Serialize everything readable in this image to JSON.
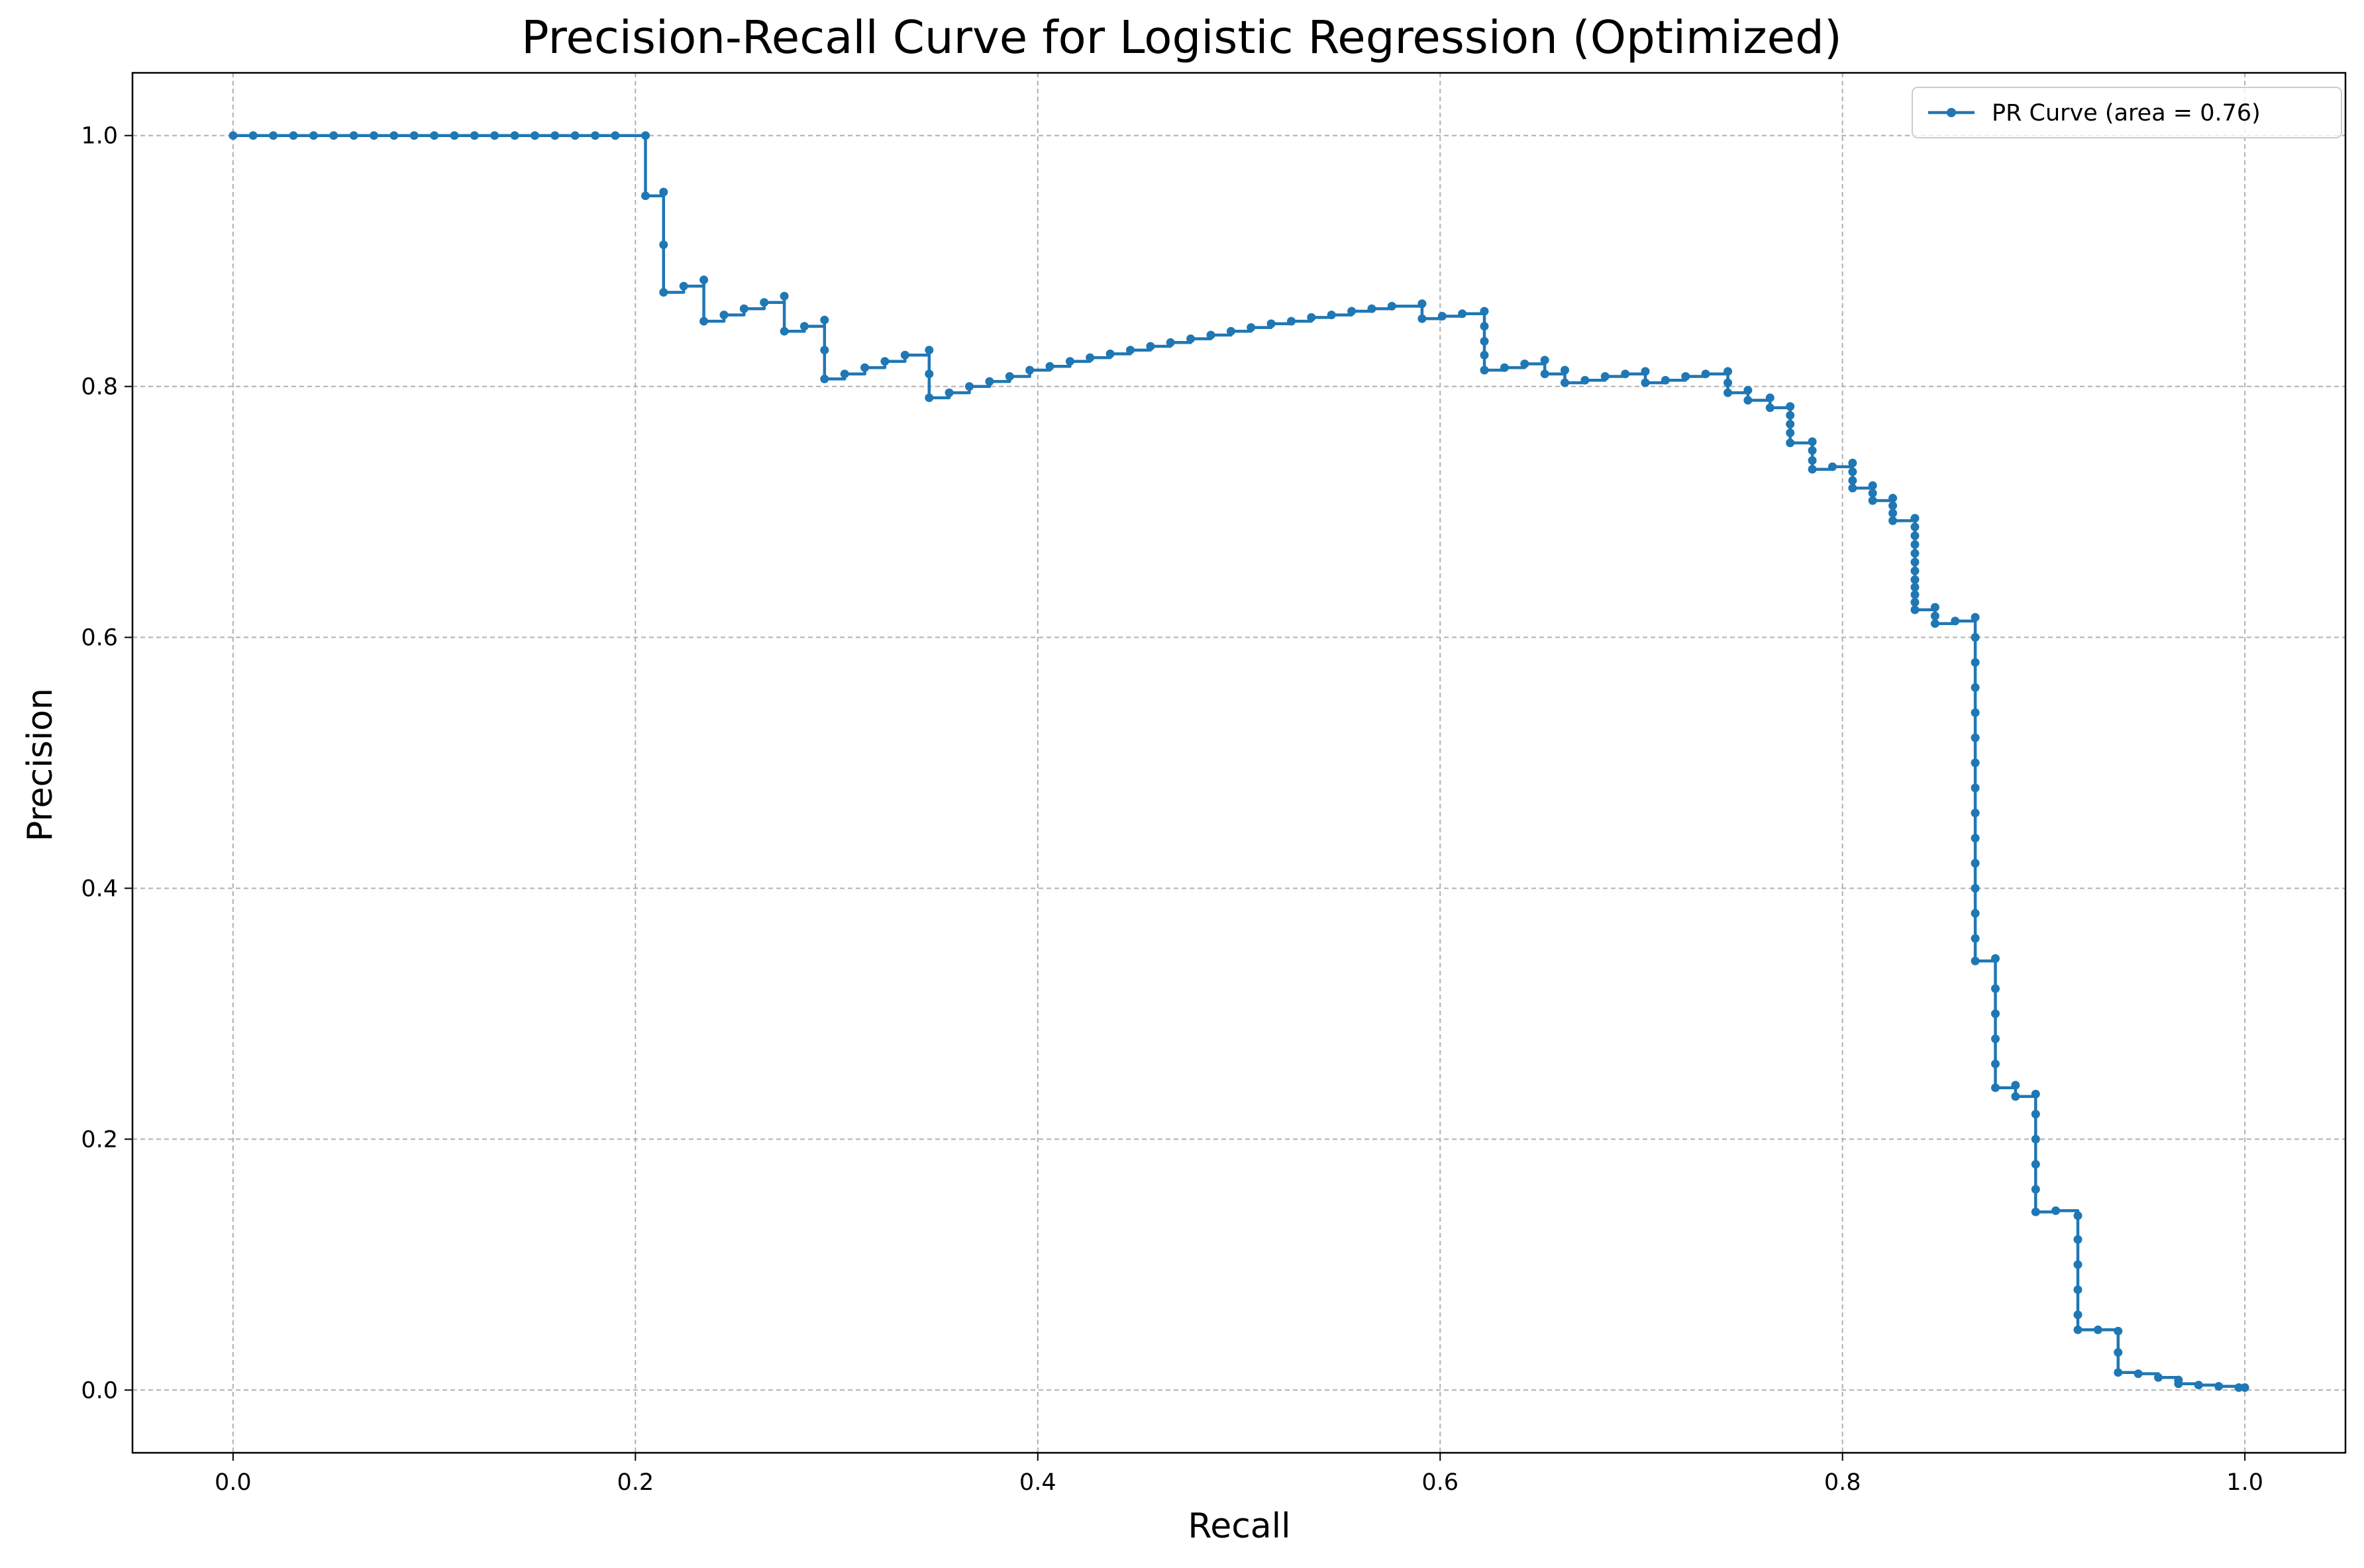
{
  "chart_data": {
    "type": "line",
    "title": "Precision-Recall Curve for Logistic Regression (Optimized)",
    "xlabel": "Recall",
    "ylabel": "Precision",
    "xlim": [
      -0.05,
      1.05
    ],
    "ylim": [
      -0.05,
      1.05
    ],
    "x_ticks": [
      0.0,
      0.2,
      0.4,
      0.6,
      0.8,
      1.0
    ],
    "y_ticks": [
      0.0,
      0.2,
      0.4,
      0.6,
      0.8,
      1.0
    ],
    "x_tick_labels": [
      "0.0",
      "0.2",
      "0.4",
      "0.6",
      "0.8",
      "1.0"
    ],
    "y_tick_labels": [
      "0.0",
      "0.2",
      "0.4",
      "0.6",
      "0.8",
      "1.0"
    ],
    "grid": true,
    "legend_position": "top-right",
    "color": "#1f77b4",
    "series": [
      {
        "name": "PR Curve (area = 0.76)",
        "drawstyle": "steps-post",
        "marker": "dot",
        "points": [
          [
            0.0,
            1.0
          ],
          [
            0.01,
            1.0
          ],
          [
            0.02,
            1.0
          ],
          [
            0.03,
            1.0
          ],
          [
            0.04,
            1.0
          ],
          [
            0.05,
            1.0
          ],
          [
            0.06,
            1.0
          ],
          [
            0.07,
            1.0
          ],
          [
            0.08,
            1.0
          ],
          [
            0.09,
            1.0
          ],
          [
            0.1,
            1.0
          ],
          [
            0.11,
            1.0
          ],
          [
            0.12,
            1.0
          ],
          [
            0.13,
            1.0
          ],
          [
            0.14,
            1.0
          ],
          [
            0.15,
            1.0
          ],
          [
            0.16,
            1.0
          ],
          [
            0.17,
            1.0
          ],
          [
            0.18,
            1.0
          ],
          [
            0.19,
            1.0
          ],
          [
            0.205,
            1.0
          ],
          [
            0.205,
            0.952
          ],
          [
            0.214,
            0.955
          ],
          [
            0.214,
            0.913
          ],
          [
            0.214,
            0.875
          ],
          [
            0.224,
            0.88
          ],
          [
            0.234,
            0.885
          ],
          [
            0.234,
            0.852
          ],
          [
            0.244,
            0.857
          ],
          [
            0.254,
            0.862
          ],
          [
            0.264,
            0.867
          ],
          [
            0.274,
            0.872
          ],
          [
            0.274,
            0.844
          ],
          [
            0.284,
            0.848
          ],
          [
            0.294,
            0.853
          ],
          [
            0.294,
            0.829
          ],
          [
            0.294,
            0.806
          ],
          [
            0.304,
            0.81
          ],
          [
            0.314,
            0.815
          ],
          [
            0.324,
            0.82
          ],
          [
            0.334,
            0.825
          ],
          [
            0.346,
            0.829
          ],
          [
            0.346,
            0.81
          ],
          [
            0.346,
            0.791
          ],
          [
            0.356,
            0.795
          ],
          [
            0.366,
            0.8
          ],
          [
            0.376,
            0.804
          ],
          [
            0.386,
            0.808
          ],
          [
            0.396,
            0.813
          ],
          [
            0.406,
            0.816
          ],
          [
            0.416,
            0.82
          ],
          [
            0.426,
            0.823
          ],
          [
            0.436,
            0.826
          ],
          [
            0.446,
            0.829
          ],
          [
            0.456,
            0.832
          ],
          [
            0.466,
            0.835
          ],
          [
            0.476,
            0.838
          ],
          [
            0.486,
            0.841
          ],
          [
            0.496,
            0.844
          ],
          [
            0.506,
            0.847
          ],
          [
            0.516,
            0.85
          ],
          [
            0.526,
            0.852
          ],
          [
            0.536,
            0.855
          ],
          [
            0.546,
            0.857
          ],
          [
            0.556,
            0.86
          ],
          [
            0.566,
            0.862
          ],
          [
            0.576,
            0.864
          ],
          [
            0.591,
            0.866
          ],
          [
            0.591,
            0.854
          ],
          [
            0.601,
            0.856
          ],
          [
            0.611,
            0.858
          ],
          [
            0.622,
            0.86
          ],
          [
            0.622,
            0.848
          ],
          [
            0.622,
            0.836
          ],
          [
            0.622,
            0.825
          ],
          [
            0.622,
            0.813
          ],
          [
            0.632,
            0.815
          ],
          [
            0.642,
            0.818
          ],
          [
            0.652,
            0.821
          ],
          [
            0.652,
            0.81
          ],
          [
            0.662,
            0.813
          ],
          [
            0.662,
            0.803
          ],
          [
            0.672,
            0.805
          ],
          [
            0.682,
            0.808
          ],
          [
            0.692,
            0.81
          ],
          [
            0.702,
            0.812
          ],
          [
            0.702,
            0.803
          ],
          [
            0.712,
            0.805
          ],
          [
            0.722,
            0.808
          ],
          [
            0.732,
            0.81
          ],
          [
            0.743,
            0.812
          ],
          [
            0.743,
            0.803
          ],
          [
            0.743,
            0.795
          ],
          [
            0.753,
            0.797
          ],
          [
            0.753,
            0.789
          ],
          [
            0.764,
            0.791
          ],
          [
            0.764,
            0.783
          ],
          [
            0.774,
            0.784
          ],
          [
            0.774,
            0.777
          ],
          [
            0.774,
            0.77
          ],
          [
            0.774,
            0.763
          ],
          [
            0.774,
            0.755
          ],
          [
            0.785,
            0.756
          ],
          [
            0.785,
            0.749
          ],
          [
            0.785,
            0.741
          ],
          [
            0.785,
            0.734
          ],
          [
            0.795,
            0.736
          ],
          [
            0.805,
            0.739
          ],
          [
            0.805,
            0.732
          ],
          [
            0.805,
            0.725
          ],
          [
            0.805,
            0.719
          ],
          [
            0.815,
            0.721
          ],
          [
            0.815,
            0.715
          ],
          [
            0.815,
            0.709
          ],
          [
            0.825,
            0.711
          ],
          [
            0.825,
            0.705
          ],
          [
            0.825,
            0.699
          ],
          [
            0.825,
            0.693
          ],
          [
            0.836,
            0.695
          ],
          [
            0.836,
            0.688
          ],
          [
            0.836,
            0.681
          ],
          [
            0.836,
            0.674
          ],
          [
            0.836,
            0.667
          ],
          [
            0.836,
            0.66
          ],
          [
            0.836,
            0.653
          ],
          [
            0.836,
            0.646
          ],
          [
            0.836,
            0.64
          ],
          [
            0.836,
            0.634
          ],
          [
            0.836,
            0.628
          ],
          [
            0.836,
            0.622
          ],
          [
            0.846,
            0.624
          ],
          [
            0.846,
            0.617
          ],
          [
            0.846,
            0.611
          ],
          [
            0.856,
            0.613
          ],
          [
            0.866,
            0.616
          ],
          [
            0.866,
            0.6
          ],
          [
            0.866,
            0.58
          ],
          [
            0.866,
            0.56
          ],
          [
            0.866,
            0.54
          ],
          [
            0.866,
            0.52
          ],
          [
            0.866,
            0.5
          ],
          [
            0.866,
            0.48
          ],
          [
            0.866,
            0.46
          ],
          [
            0.866,
            0.44
          ],
          [
            0.866,
            0.42
          ],
          [
            0.866,
            0.4
          ],
          [
            0.866,
            0.38
          ],
          [
            0.866,
            0.36
          ],
          [
            0.866,
            0.342
          ],
          [
            0.876,
            0.344
          ],
          [
            0.876,
            0.32
          ],
          [
            0.876,
            0.3
          ],
          [
            0.876,
            0.28
          ],
          [
            0.876,
            0.26
          ],
          [
            0.876,
            0.241
          ],
          [
            0.886,
            0.243
          ],
          [
            0.886,
            0.234
          ],
          [
            0.896,
            0.236
          ],
          [
            0.896,
            0.22
          ],
          [
            0.896,
            0.2
          ],
          [
            0.896,
            0.18
          ],
          [
            0.896,
            0.16
          ],
          [
            0.896,
            0.142
          ],
          [
            0.906,
            0.143
          ],
          [
            0.917,
            0.139
          ],
          [
            0.917,
            0.12
          ],
          [
            0.917,
            0.1
          ],
          [
            0.917,
            0.08
          ],
          [
            0.917,
            0.06
          ],
          [
            0.917,
            0.048
          ],
          [
            0.927,
            0.048
          ],
          [
            0.937,
            0.047
          ],
          [
            0.937,
            0.03
          ],
          [
            0.937,
            0.014
          ],
          [
            0.947,
            0.013
          ],
          [
            0.957,
            0.01
          ],
          [
            0.967,
            0.008
          ],
          [
            0.967,
            0.005
          ],
          [
            0.977,
            0.004
          ],
          [
            0.987,
            0.003
          ],
          [
            0.997,
            0.002
          ],
          [
            1.0,
            0.002
          ]
        ]
      }
    ]
  }
}
